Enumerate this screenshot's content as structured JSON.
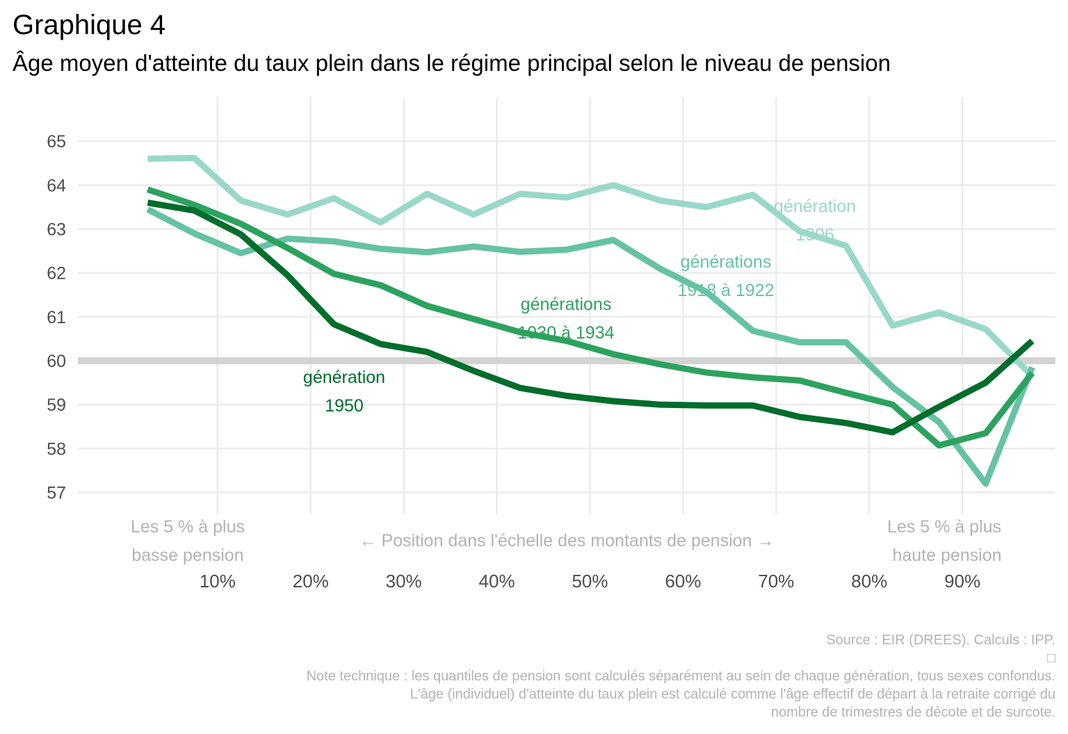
{
  "title": "Graphique 4",
  "subtitle": "Âge moyen d'atteinte du taux plein dans le régime principal selon le niveau de pension",
  "chart_data": {
    "type": "line",
    "title": "Graphique 4",
    "subtitle": "Âge moyen d'atteinte du taux plein dans le régime principal selon le niveau de pension",
    "xlabel": "← Position dans l'échelle des montants de pension →",
    "ylabel": "",
    "x": [
      2.5,
      7.5,
      12.5,
      17.5,
      22.5,
      27.5,
      32.5,
      37.5,
      42.5,
      47.5,
      52.5,
      57.5,
      62.5,
      67.5,
      72.5,
      77.5,
      82.5,
      87.5,
      92.5,
      97.5
    ],
    "xlim": [
      -5,
      100
    ],
    "ylim": [
      56.5,
      66
    ],
    "x_ticks": [
      10,
      20,
      30,
      40,
      50,
      60,
      70,
      80,
      90
    ],
    "x_tick_labels": [
      "10%",
      "20%",
      "30%",
      "40%",
      "50%",
      "60%",
      "70%",
      "80%",
      "90%"
    ],
    "y_ticks": [
      57,
      58,
      59,
      60,
      61,
      62,
      63,
      64,
      65
    ],
    "y_tick_labels": [
      "57",
      "58",
      "59",
      "60",
      "61",
      "62",
      "63",
      "64",
      "65"
    ],
    "grid": true,
    "reference_line": {
      "y": 60,
      "color": "#d3d3d3"
    },
    "annotations": {
      "low_end_line1": "Les 5 % à plus",
      "low_end_line2": "basse pension",
      "high_end_line1": "Les 5 % à plus",
      "high_end_line2": "haute pension"
    },
    "series": [
      {
        "name": "génération 1906",
        "label_line1": "génération",
        "label_line2": "1906",
        "color": "#99d8c9",
        "values": [
          64.6,
          64.62,
          63.65,
          63.33,
          63.7,
          63.15,
          63.8,
          63.33,
          63.8,
          63.72,
          64.0,
          63.65,
          63.5,
          63.78,
          62.95,
          62.62,
          60.8,
          61.1,
          60.72,
          59.65
        ]
      },
      {
        "name": "générations 1918 à 1922",
        "label_line1": "générations",
        "label_line2": "1918 à 1922",
        "color": "#66c2a4",
        "values": [
          63.45,
          62.9,
          62.45,
          62.78,
          62.72,
          62.55,
          62.47,
          62.6,
          62.48,
          62.53,
          62.75,
          62.1,
          61.57,
          60.68,
          60.42,
          60.42,
          59.4,
          58.6,
          57.2,
          59.85
        ]
      },
      {
        "name": "générations 1930 à 1934",
        "label_line1": "générations",
        "label_line2": "1930 à 1934",
        "color": "#2ca25f",
        "values": [
          63.9,
          63.55,
          63.12,
          62.57,
          61.98,
          61.72,
          61.25,
          60.95,
          60.65,
          60.45,
          60.15,
          59.92,
          59.73,
          59.62,
          59.55,
          59.27,
          59.0,
          58.07,
          58.35,
          59.72
        ]
      },
      {
        "name": "génération 1950",
        "label_line1": "génération",
        "label_line2": "1950",
        "color": "#006d2c",
        "values": [
          63.6,
          63.42,
          62.88,
          61.95,
          60.83,
          60.38,
          60.2,
          59.77,
          59.38,
          59.2,
          59.08,
          59.0,
          58.98,
          58.98,
          58.72,
          58.58,
          58.37,
          58.95,
          59.5,
          60.45
        ]
      }
    ]
  },
  "caption": {
    "source": "Source : EIR (DREES). Calculs : IPP.",
    "glyph": "□",
    "note_line1": "Note technique : les quantiles de pension sont calculés séparément au sein de chaque génération, tous sexes confondus.",
    "note_line2": "L'âge (individuel) d'atteinte du taux plein est calculé comme l'âge effectif de départ à la retraite corrigé du",
    "note_line3": "nombre de trimestres de décote et de surcote."
  }
}
